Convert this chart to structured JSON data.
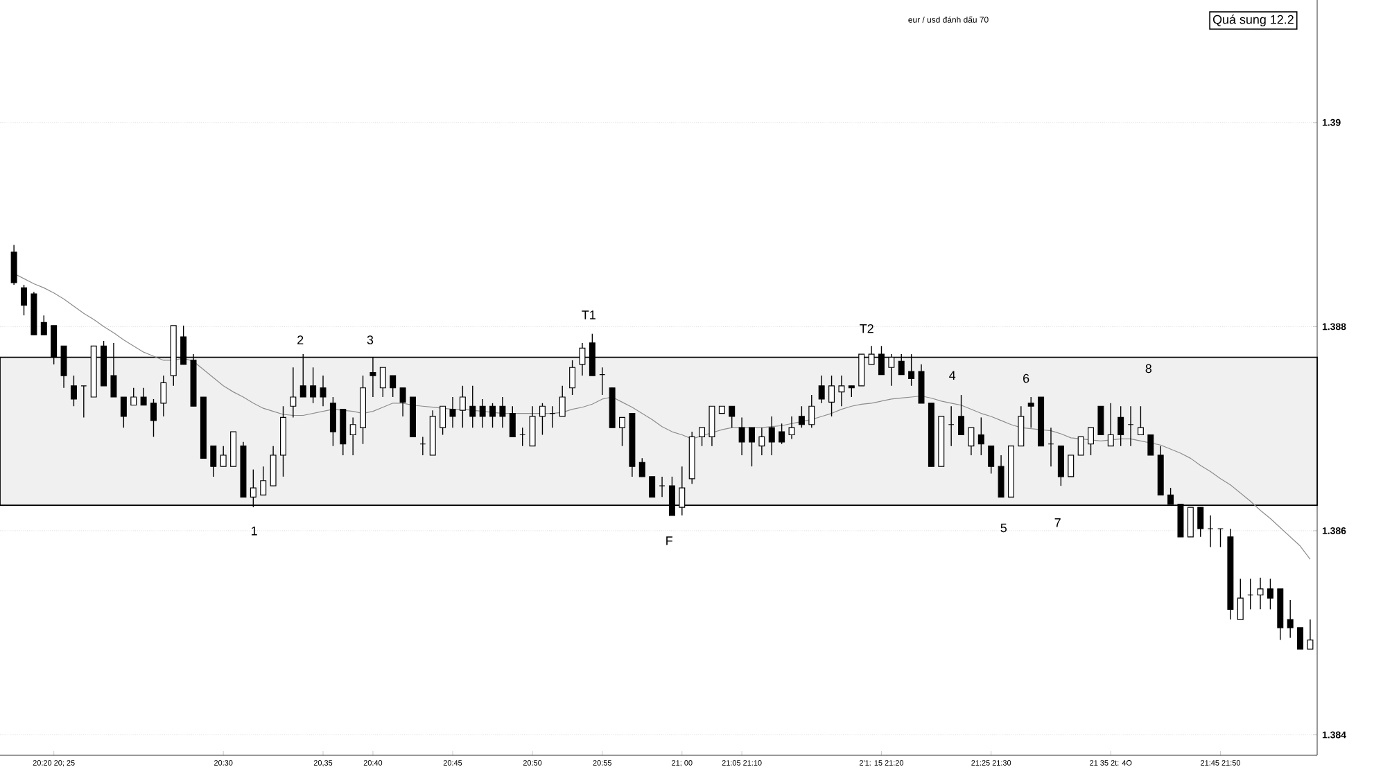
{
  "chart_data": {
    "type": "candlestick",
    "title": "eur / usd đánh dấu 70",
    "categories": [
      null,
      null,
      null,
      null,
      "20:20 20; 25",
      null,
      null,
      null,
      null,
      null,
      null,
      null,
      null,
      null,
      null,
      null,
      null,
      null,
      null,
      null,
      null,
      "20:30",
      null,
      null,
      null,
      null,
      null,
      null,
      null,
      null,
      null,
      "20,35",
      null,
      null,
      null,
      null,
      "20:40",
      null,
      null,
      null,
      null,
      null,
      null,
      null,
      "20:45",
      null,
      null,
      null,
      null,
      null,
      null,
      null,
      "20:50",
      null,
      null,
      null,
      null,
      null,
      null,
      "20:55",
      null,
      null,
      null,
      null,
      null,
      null,
      null,
      "21; 00",
      null,
      null,
      null,
      null,
      null,
      "21:05 21:10",
      null,
      null,
      null,
      null,
      null,
      null,
      null,
      null,
      null,
      null,
      null,
      null,
      null,
      "2'1: 15 21:20",
      null,
      null,
      null,
      null,
      null,
      null,
      null,
      null,
      null,
      null,
      "21:25 21:30",
      null,
      null,
      null,
      null,
      null,
      null,
      null,
      null,
      null,
      null,
      null,
      "21 35 2t: 4O",
      null,
      null,
      null,
      null,
      null,
      null,
      null,
      null,
      null,
      null,
      "21:45 21:50",
      null,
      null,
      null,
      null,
      null,
      null,
      null,
      null,
      null
    ],
    "ohlc": [
      [
        1.38873,
        1.3888,
        1.38841,
        1.38843
      ],
      [
        1.38838,
        1.38841,
        1.38811,
        1.38821
      ],
      [
        1.38832,
        1.38834,
        1.38792,
        1.38792
      ],
      [
        1.38804,
        1.38811,
        1.38792,
        1.38792
      ],
      [
        1.38801,
        1.38801,
        1.38763,
        1.3877
      ],
      [
        1.38781,
        1.38781,
        1.3874,
        1.38752
      ],
      [
        1.38742,
        1.38752,
        1.38722,
        1.38729
      ],
      [
        1.38742,
        1.38742,
        1.38711,
        1.38742
      ],
      [
        1.38731,
        1.38781,
        1.38731,
        1.38781
      ],
      [
        1.38781,
        1.38786,
        1.38742,
        1.38742
      ],
      [
        1.38752,
        1.38784,
        1.38731,
        1.38731
      ],
      [
        1.38731,
        1.38731,
        1.38701,
        1.38712
      ],
      [
        1.38723,
        1.3874,
        1.38723,
        1.38731
      ],
      [
        1.38731,
        1.3874,
        1.38723,
        1.38723
      ],
      [
        1.38725,
        1.38729,
        1.38692,
        1.38708
      ],
      [
        1.38725,
        1.38752,
        1.38712,
        1.38745
      ],
      [
        1.38752,
        1.38801,
        1.38742,
        1.38801
      ],
      [
        1.3879,
        1.38801,
        1.38763,
        1.38763
      ],
      [
        1.38767,
        1.38773,
        1.38722,
        1.38722
      ],
      [
        1.38731,
        1.38731,
        1.38671,
        1.38671
      ],
      [
        1.38683,
        1.38683,
        1.38653,
        1.38663
      ],
      [
        1.38663,
        1.38683,
        1.38663,
        1.38674
      ],
      [
        1.38663,
        1.38697,
        1.38663,
        1.38697
      ],
      [
        1.38683,
        1.38687,
        1.38633,
        1.38633
      ],
      [
        1.38633,
        1.3866,
        1.38623,
        1.38642
      ],
      [
        1.38635,
        1.38663,
        1.38635,
        1.38649
      ],
      [
        1.38644,
        1.38683,
        1.38644,
        1.38674
      ],
      [
        1.38674,
        1.38722,
        1.38653,
        1.38711
      ],
      [
        1.38722,
        1.3876,
        1.38711,
        1.38731
      ],
      [
        1.38742,
        1.38773,
        1.38731,
        1.38731
      ],
      [
        1.38742,
        1.3876,
        1.38725,
        1.38731
      ],
      [
        1.3874,
        1.38752,
        1.38722,
        1.38731
      ],
      [
        1.38725,
        1.38731,
        1.38683,
        1.38697
      ],
      [
        1.38719,
        1.38719,
        1.38674,
        1.38685
      ],
      [
        1.38694,
        1.38711,
        1.38674,
        1.38704
      ],
      [
        1.38701,
        1.38752,
        1.38685,
        1.3874
      ],
      [
        1.38755,
        1.3877,
        1.38731,
        1.38752
      ],
      [
        1.3874,
        1.3876,
        1.38731,
        1.3876
      ],
      [
        1.38752,
        1.38752,
        1.38731,
        1.3874
      ],
      [
        1.3874,
        1.3874,
        1.38712,
        1.38726
      ],
      [
        1.38731,
        1.38731,
        1.38692,
        1.38692
      ],
      [
        1.38685,
        1.38692,
        1.38674,
        1.38685
      ],
      [
        1.38674,
        1.38718,
        1.38674,
        1.38712
      ],
      [
        1.38701,
        1.38722,
        1.38694,
        1.38722
      ],
      [
        1.38719,
        1.38731,
        1.38701,
        1.38712
      ],
      [
        1.38718,
        1.38742,
        1.38701,
        1.38731
      ],
      [
        1.38722,
        1.38742,
        1.38701,
        1.38712
      ],
      [
        1.38722,
        1.38729,
        1.38701,
        1.38712
      ],
      [
        1.38722,
        1.38725,
        1.38701,
        1.38712
      ],
      [
        1.38722,
        1.38731,
        1.38701,
        1.38712
      ],
      [
        1.38715,
        1.38722,
        1.38692,
        1.38692
      ],
      [
        1.38694,
        1.38701,
        1.38683,
        1.38694
      ],
      [
        1.38683,
        1.38722,
        1.38683,
        1.38712
      ],
      [
        1.38712,
        1.38725,
        1.38694,
        1.38722
      ],
      [
        1.38715,
        1.38722,
        1.38701,
        1.38715
      ],
      [
        1.38712,
        1.38742,
        1.38712,
        1.38731
      ],
      [
        1.3874,
        1.38767,
        1.38733,
        1.3876
      ],
      [
        1.38763,
        1.38784,
        1.38752,
        1.38779
      ],
      [
        1.38784,
        1.38793,
        1.38752,
        1.38752
      ],
      [
        1.38753,
        1.3876,
        1.38733,
        1.38753
      ],
      [
        1.3874,
        1.3874,
        1.38701,
        1.38701
      ],
      [
        1.38701,
        1.38711,
        1.38683,
        1.38711
      ],
      [
        1.38715,
        1.38715,
        1.38653,
        1.38663
      ],
      [
        1.38667,
        1.38671,
        1.38653,
        1.38653
      ],
      [
        1.38653,
        1.38653,
        1.38633,
        1.38633
      ],
      [
        1.38644,
        1.38653,
        1.38633,
        1.38644
      ],
      [
        1.38644,
        1.38653,
        1.38615,
        1.38615
      ],
      [
        1.38623,
        1.38663,
        1.38615,
        1.38642
      ],
      [
        1.38651,
        1.38697,
        1.38646,
        1.38692
      ],
      [
        1.38692,
        1.38701,
        1.38683,
        1.38701
      ],
      [
        1.38692,
        1.38722,
        1.38683,
        1.38722
      ],
      [
        1.38715,
        1.38722,
        1.38715,
        1.38722
      ],
      [
        1.38722,
        1.38722,
        1.38701,
        1.38712
      ],
      [
        1.38701,
        1.38711,
        1.38674,
        1.38687
      ],
      [
        1.38701,
        1.38701,
        1.38663,
        1.38687
      ],
      [
        1.38683,
        1.38701,
        1.38674,
        1.38692
      ],
      [
        1.38701,
        1.38712,
        1.38674,
        1.38687
      ],
      [
        1.38697,
        1.38705,
        1.38685,
        1.38687
      ],
      [
        1.38694,
        1.38712,
        1.3869,
        1.38701
      ],
      [
        1.38712,
        1.38722,
        1.38701,
        1.38704
      ],
      [
        1.38704,
        1.38733,
        1.38701,
        1.38722
      ],
      [
        1.38742,
        1.38752,
        1.38725,
        1.38729
      ],
      [
        1.38726,
        1.38752,
        1.38712,
        1.38742
      ],
      [
        1.38736,
        1.38752,
        1.38722,
        1.38742
      ],
      [
        1.38742,
        1.38742,
        1.38731,
        1.3874
      ],
      [
        1.38742,
        1.38773,
        1.38742,
        1.38773
      ],
      [
        1.38763,
        1.38781,
        1.38763,
        1.38773
      ],
      [
        1.38773,
        1.38781,
        1.38753,
        1.38753
      ],
      [
        1.3876,
        1.38773,
        1.38742,
        1.3877
      ],
      [
        1.38766,
        1.38773,
        1.38753,
        1.38753
      ],
      [
        1.38756,
        1.38773,
        1.38742,
        1.38749
      ],
      [
        1.38756,
        1.38763,
        1.38725,
        1.38725
      ],
      [
        1.38725,
        1.38725,
        1.38663,
        1.38663
      ],
      [
        1.38663,
        1.38712,
        1.38663,
        1.38712
      ],
      [
        1.38704,
        1.38722,
        1.38683,
        1.38704
      ],
      [
        1.38712,
        1.38733,
        1.38694,
        1.38694
      ],
      [
        1.38683,
        1.38701,
        1.38674,
        1.38701
      ],
      [
        1.38694,
        1.38711,
        1.38674,
        1.38685
      ],
      [
        1.38683,
        1.38683,
        1.38656,
        1.38663
      ],
      [
        1.38663,
        1.38674,
        1.38633,
        1.38633
      ],
      [
        1.38633,
        1.38683,
        1.38633,
        1.38683
      ],
      [
        1.38683,
        1.38722,
        1.38683,
        1.38712
      ],
      [
        1.38725,
        1.38731,
        1.38701,
        1.38722
      ],
      [
        1.38731,
        1.38731,
        1.38683,
        1.38683
      ],
      [
        1.38685,
        1.38701,
        1.38663,
        1.38685
      ],
      [
        1.38683,
        1.38683,
        1.38644,
        1.38653
      ],
      [
        1.38653,
        1.38674,
        1.38653,
        1.38674
      ],
      [
        1.38674,
        1.38692,
        1.38674,
        1.38692
      ],
      [
        1.38685,
        1.38701,
        1.38674,
        1.38701
      ],
      [
        1.38722,
        1.38722,
        1.38694,
        1.38694
      ],
      [
        1.38683,
        1.38725,
        1.38683,
        1.38694
      ],
      [
        1.38711,
        1.38722,
        1.38683,
        1.38694
      ],
      [
        1.38704,
        1.38722,
        1.38683,
        1.38704
      ],
      [
        1.38694,
        1.38722,
        1.38694,
        1.38701
      ],
      [
        1.38694,
        1.38694,
        1.38674,
        1.38674
      ],
      [
        1.38674,
        1.38683,
        1.38635,
        1.38635
      ],
      [
        1.38635,
        1.38642,
        1.38626,
        1.38626
      ],
      [
        1.38626,
        1.38626,
        1.38594,
        1.38594
      ],
      [
        1.38594,
        1.38623,
        1.38594,
        1.38623
      ],
      [
        1.38623,
        1.38623,
        1.38594,
        1.38602
      ],
      [
        1.38602,
        1.38615,
        1.38584,
        1.38602
      ],
      [
        1.38602,
        1.38602,
        1.38584,
        1.38602
      ],
      [
        1.38594,
        1.38602,
        1.38513,
        1.38523
      ],
      [
        1.38513,
        1.38553,
        1.38513,
        1.38534
      ],
      [
        1.38537,
        1.38553,
        1.38523,
        1.38537
      ],
      [
        1.38537,
        1.38554,
        1.38523,
        1.38543
      ],
      [
        1.38543,
        1.38553,
        1.38523,
        1.38534
      ],
      [
        1.38543,
        1.38543,
        1.38493,
        1.38505
      ],
      [
        1.38513,
        1.38532,
        1.38495,
        1.38505
      ],
      [
        1.38505,
        1.38505,
        1.38484,
        1.38484
      ],
      [
        1.38484,
        1.38513,
        1.38484,
        1.38493
      ]
    ],
    "series": [
      {
        "type": "line",
        "color": "#8c8c8c",
        "values": [
          1.38852,
          1.38847,
          1.38842,
          1.38838,
          1.38833,
          1.38827,
          1.3882,
          1.38813,
          1.38807,
          1.388,
          1.38794,
          1.38787,
          1.38781,
          1.38775,
          1.38771,
          1.38767,
          1.38767,
          1.38769,
          1.38766,
          1.38758,
          1.3875,
          1.38742,
          1.38736,
          1.38731,
          1.38725,
          1.3872,
          1.38717,
          1.38714,
          1.38713,
          1.38713,
          1.38715,
          1.38717,
          1.38719,
          1.38718,
          1.38717,
          1.38715,
          1.38717,
          1.38721,
          1.38725,
          1.38725,
          1.38723,
          1.38722,
          1.38721,
          1.3872,
          1.38719,
          1.38719,
          1.38718,
          1.38717,
          1.38716,
          1.38715,
          1.38715,
          1.38715,
          1.38715,
          1.38715,
          1.38715,
          1.38716,
          1.38719,
          1.38721,
          1.38724,
          1.38729,
          1.38731,
          1.38726,
          1.38721,
          1.38715,
          1.38709,
          1.38702,
          1.38697,
          1.38694,
          1.3869,
          1.38693,
          1.38696,
          1.38699,
          1.38701,
          1.38701,
          1.38701,
          1.38701,
          1.38702,
          1.38703,
          1.38705,
          1.38707,
          1.38709,
          1.38712,
          1.38715,
          1.38719,
          1.38722,
          1.38724,
          1.38725,
          1.38727,
          1.38729,
          1.3873,
          1.38731,
          1.38732,
          1.3873,
          1.38727,
          1.38725,
          1.38723,
          1.38719,
          1.38715,
          1.38712,
          1.38708,
          1.38704,
          1.38701,
          1.387,
          1.38699,
          1.38698,
          1.38695,
          1.38691,
          1.3869,
          1.38689,
          1.38688,
          1.38689,
          1.3869,
          1.3869,
          1.38688,
          1.38686,
          1.38684,
          1.3868,
          1.38676,
          1.38671,
          1.38664,
          1.38658,
          1.38651,
          1.38645,
          1.38637,
          1.38629,
          1.3862,
          1.38612,
          1.38603,
          1.38594,
          1.38585,
          1.38572
        ]
      }
    ],
    "ylim": [
      1.3838,
      1.3912
    ],
    "yticks": [
      1.384,
      1.386,
      1.388,
      1.39
    ],
    "grid": "y",
    "bands": [
      {
        "axis": "y",
        "from": 1.38625,
        "to": 1.3877
      }
    ],
    "annotations": [
      "1",
      "2",
      "3",
      "T1",
      "F",
      "T2",
      "4",
      "5",
      "6",
      "7",
      "8",
      "Quá sung 12.2"
    ]
  }
}
